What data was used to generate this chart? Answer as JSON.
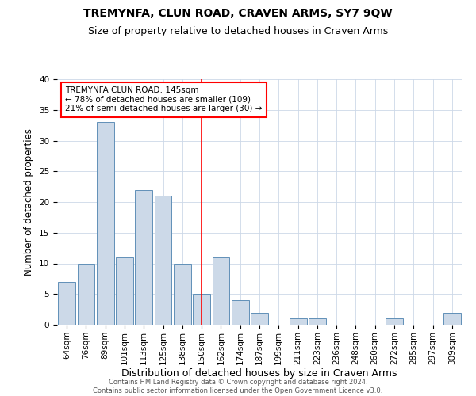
{
  "title": "TREMYNFA, CLUN ROAD, CRAVEN ARMS, SY7 9QW",
  "subtitle": "Size of property relative to detached houses in Craven Arms",
  "xlabel": "Distribution of detached houses by size in Craven Arms",
  "ylabel": "Number of detached properties",
  "categories": [
    "64sqm",
    "76sqm",
    "89sqm",
    "101sqm",
    "113sqm",
    "125sqm",
    "138sqm",
    "150sqm",
    "162sqm",
    "174sqm",
    "187sqm",
    "199sqm",
    "211sqm",
    "223sqm",
    "236sqm",
    "248sqm",
    "260sqm",
    "272sqm",
    "285sqm",
    "297sqm",
    "309sqm"
  ],
  "values": [
    7,
    10,
    33,
    11,
    22,
    21,
    10,
    5,
    11,
    4,
    2,
    0,
    1,
    1,
    0,
    0,
    0,
    1,
    0,
    0,
    2
  ],
  "bar_color": "#ccd9e8",
  "bar_edge_color": "#6090b8",
  "vline_index": 7,
  "annotation_line1": "TREMYNFA CLUN ROAD: 145sqm",
  "annotation_line2": "← 78% of detached houses are smaller (109)",
  "annotation_line3": "21% of semi-detached houses are larger (30) →",
  "ylim": [
    0,
    40
  ],
  "yticks": [
    0,
    5,
    10,
    15,
    20,
    25,
    30,
    35,
    40
  ],
  "title_fontsize": 10,
  "subtitle_fontsize": 9,
  "xlabel_fontsize": 9,
  "ylabel_fontsize": 8.5,
  "tick_fontsize": 7.5,
  "annotation_fontsize": 7.5,
  "footer_line1": "Contains HM Land Registry data © Crown copyright and database right 2024.",
  "footer_line2": "Contains public sector information licensed under the Open Government Licence v3.0.",
  "background_color": "#ffffff",
  "grid_color": "#ccd8e8"
}
